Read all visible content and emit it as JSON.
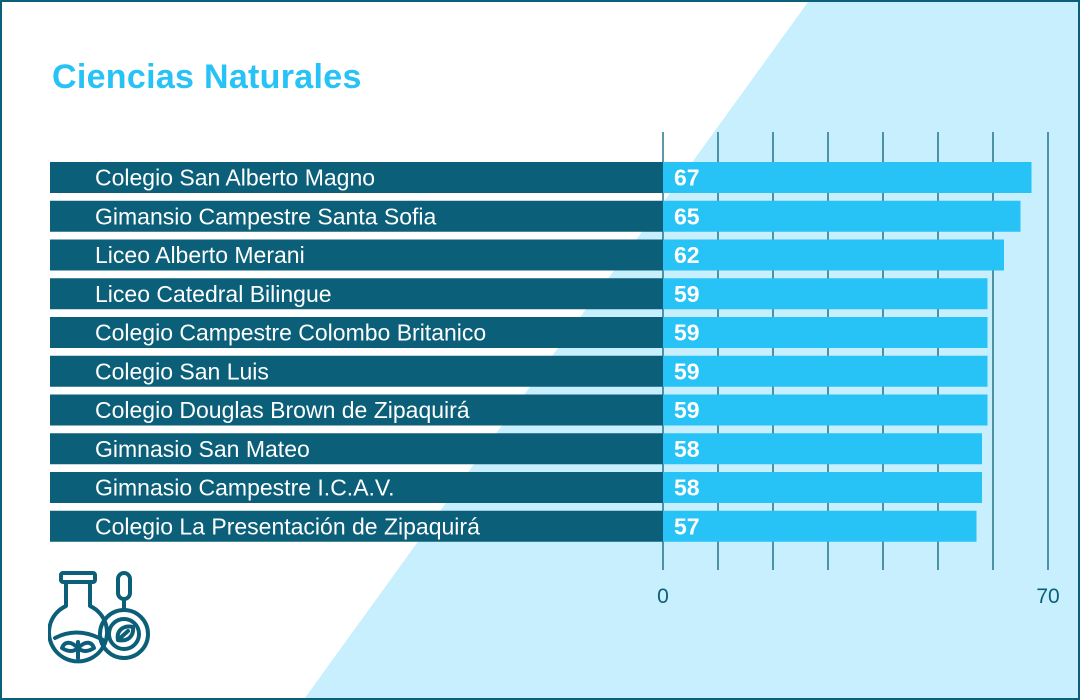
{
  "colors": {
    "title": "#27c2f6",
    "label_band": "#0b5f78",
    "bar": "#27c2f6",
    "background_light": "#c8effd",
    "grid": "#0b5f78"
  },
  "icon": "science-flask-magnifier-icon",
  "chart_data": {
    "type": "bar",
    "orientation": "horizontal",
    "title": "Ciencias Naturales",
    "categories": [
      "Colegio San Alberto Magno",
      "Gimansio Campestre Santa Sofia",
      "Liceo Alberto Merani",
      "Liceo Catedral Bilingue",
      "Colegio Campestre Colombo Britanico",
      "Colegio San Luis",
      "Colegio Douglas Brown de Zipaquirá",
      "Gimnasio San Mateo",
      "Gimnasio Campestre I.C.A.V.",
      "Colegio La Presentación de Zipaquirá"
    ],
    "values": [
      67,
      65,
      62,
      59,
      59,
      59,
      59,
      58,
      58,
      57
    ],
    "xlim": [
      0,
      70
    ],
    "tick_labels": [
      "0",
      "70"
    ],
    "grid": true
  }
}
